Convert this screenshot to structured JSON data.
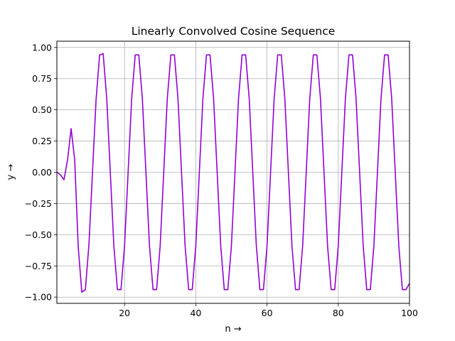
{
  "chart_data": {
    "type": "line",
    "title": "Linearly Convolved Cosine Sequence",
    "xlabel": "n →",
    "ylabel": "y →",
    "xlim": [
      1,
      100
    ],
    "ylim": [
      -1.05,
      1.05
    ],
    "xticks": [
      20,
      40,
      60,
      80,
      100
    ],
    "yticks": [
      -1.0,
      -0.75,
      -0.5,
      -0.25,
      0.0,
      0.25,
      0.5,
      0.75,
      1.0
    ],
    "grid": true,
    "line_color": "#9400d3",
    "series": [
      {
        "x": [
          1,
          2,
          3,
          4,
          5,
          6,
          7,
          8,
          9,
          10,
          11,
          12,
          13,
          14,
          15,
          16,
          17,
          18,
          19,
          20,
          21,
          22,
          23,
          24,
          25,
          26,
          27,
          28,
          29,
          30,
          31,
          32,
          33,
          34,
          35,
          36,
          37,
          38,
          39,
          40,
          41,
          42,
          43,
          44,
          45,
          46,
          47,
          48,
          49,
          50,
          51,
          52,
          53,
          54,
          55,
          56,
          57,
          58,
          59,
          60,
          61,
          62,
          63,
          64,
          65,
          66,
          67,
          68,
          69,
          70,
          71,
          72,
          73,
          74,
          75,
          76,
          77,
          78,
          79,
          80,
          81,
          82,
          83,
          84,
          85,
          86,
          87,
          88,
          89,
          90,
          91,
          92,
          93,
          94,
          95,
          96,
          97,
          98,
          99,
          100
        ],
        "y": [
          0.0,
          -0.02,
          -0.06,
          0.1,
          0.35,
          0.1,
          -0.6,
          -0.96,
          -0.94,
          -0.58,
          0.0,
          0.58,
          0.94,
          0.95,
          0.59,
          0.0,
          -0.59,
          -0.94,
          -0.94,
          -0.59,
          0.0,
          0.59,
          0.94,
          0.94,
          0.59,
          0.0,
          -0.59,
          -0.94,
          -0.94,
          -0.59,
          0.0,
          0.59,
          0.94,
          0.94,
          0.59,
          0.0,
          -0.59,
          -0.94,
          -0.94,
          -0.59,
          0.0,
          0.59,
          0.94,
          0.94,
          0.59,
          0.0,
          -0.59,
          -0.94,
          -0.94,
          -0.59,
          0.0,
          0.59,
          0.94,
          0.94,
          0.59,
          0.0,
          -0.59,
          -0.94,
          -0.94,
          -0.59,
          0.0,
          0.59,
          0.94,
          0.94,
          0.59,
          0.0,
          -0.59,
          -0.94,
          -0.94,
          -0.59,
          0.0,
          0.59,
          0.94,
          0.94,
          0.59,
          0.0,
          -0.59,
          -0.94,
          -0.94,
          -0.59,
          0.0,
          0.59,
          0.94,
          0.94,
          0.59,
          0.0,
          -0.59,
          -0.94,
          -0.94,
          -0.59,
          0.0,
          0.59,
          0.94,
          0.94,
          0.59,
          0.0,
          -0.59,
          -0.94,
          -0.94,
          -0.89
        ]
      }
    ]
  }
}
